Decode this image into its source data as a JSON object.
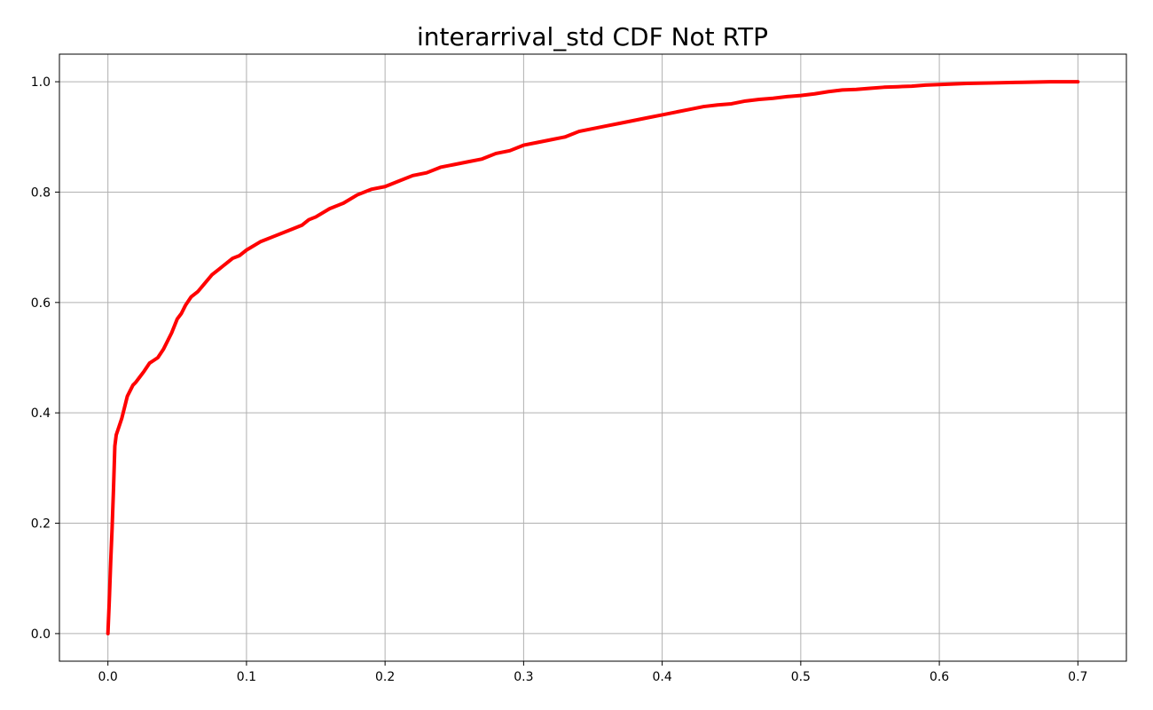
{
  "chart_data": {
    "type": "line",
    "title": "interarrival_std CDF Not RTP",
    "xlabel": "",
    "ylabel": "",
    "xlim": [
      -0.035,
      0.735
    ],
    "ylim": [
      -0.05,
      1.05
    ],
    "xticks": [
      0.0,
      0.1,
      0.2,
      0.3,
      0.4,
      0.5,
      0.6,
      0.7
    ],
    "xtick_labels": [
      "0.0",
      "0.1",
      "0.2",
      "0.3",
      "0.4",
      "0.5",
      "0.6",
      "0.7"
    ],
    "yticks": [
      0.0,
      0.2,
      0.4,
      0.6,
      0.8,
      1.0
    ],
    "ytick_labels": [
      "0.0",
      "0.2",
      "0.4",
      "0.6",
      "0.8",
      "1.0"
    ],
    "grid": true,
    "colors": {
      "series": "#ff0000",
      "grid": "#b0b0b0"
    },
    "series": [
      {
        "x": [
          0.0,
          0.001,
          0.002,
          0.003,
          0.004,
          0.005,
          0.006,
          0.008,
          0.01,
          0.012,
          0.014,
          0.016,
          0.018,
          0.02,
          0.023,
          0.026,
          0.03,
          0.033,
          0.036,
          0.04,
          0.043,
          0.046,
          0.05,
          0.053,
          0.056,
          0.06,
          0.065,
          0.07,
          0.075,
          0.08,
          0.085,
          0.09,
          0.095,
          0.1,
          0.11,
          0.12,
          0.13,
          0.14,
          0.145,
          0.15,
          0.16,
          0.17,
          0.18,
          0.19,
          0.2,
          0.21,
          0.22,
          0.23,
          0.24,
          0.25,
          0.26,
          0.27,
          0.28,
          0.29,
          0.3,
          0.31,
          0.32,
          0.33,
          0.34,
          0.35,
          0.36,
          0.37,
          0.38,
          0.39,
          0.4,
          0.41,
          0.42,
          0.43,
          0.44,
          0.45,
          0.46,
          0.47,
          0.48,
          0.49,
          0.5,
          0.51,
          0.52,
          0.53,
          0.54,
          0.55,
          0.56,
          0.57,
          0.58,
          0.59,
          0.6,
          0.62,
          0.64,
          0.66,
          0.68,
          0.7
        ],
        "values": [
          0.0,
          0.06,
          0.13,
          0.19,
          0.26,
          0.34,
          0.36,
          0.375,
          0.39,
          0.41,
          0.43,
          0.44,
          0.45,
          0.455,
          0.465,
          0.475,
          0.49,
          0.495,
          0.5,
          0.515,
          0.53,
          0.545,
          0.57,
          0.58,
          0.595,
          0.61,
          0.62,
          0.635,
          0.65,
          0.66,
          0.67,
          0.68,
          0.685,
          0.695,
          0.71,
          0.72,
          0.73,
          0.74,
          0.75,
          0.755,
          0.77,
          0.78,
          0.795,
          0.805,
          0.81,
          0.82,
          0.83,
          0.835,
          0.845,
          0.85,
          0.855,
          0.86,
          0.87,
          0.875,
          0.885,
          0.89,
          0.895,
          0.9,
          0.91,
          0.915,
          0.92,
          0.925,
          0.93,
          0.935,
          0.94,
          0.945,
          0.95,
          0.955,
          0.958,
          0.96,
          0.965,
          0.968,
          0.97,
          0.973,
          0.975,
          0.978,
          0.982,
          0.985,
          0.986,
          0.988,
          0.99,
          0.991,
          0.992,
          0.994,
          0.995,
          0.997,
          0.998,
          0.999,
          1.0,
          1.0
        ]
      }
    ]
  }
}
